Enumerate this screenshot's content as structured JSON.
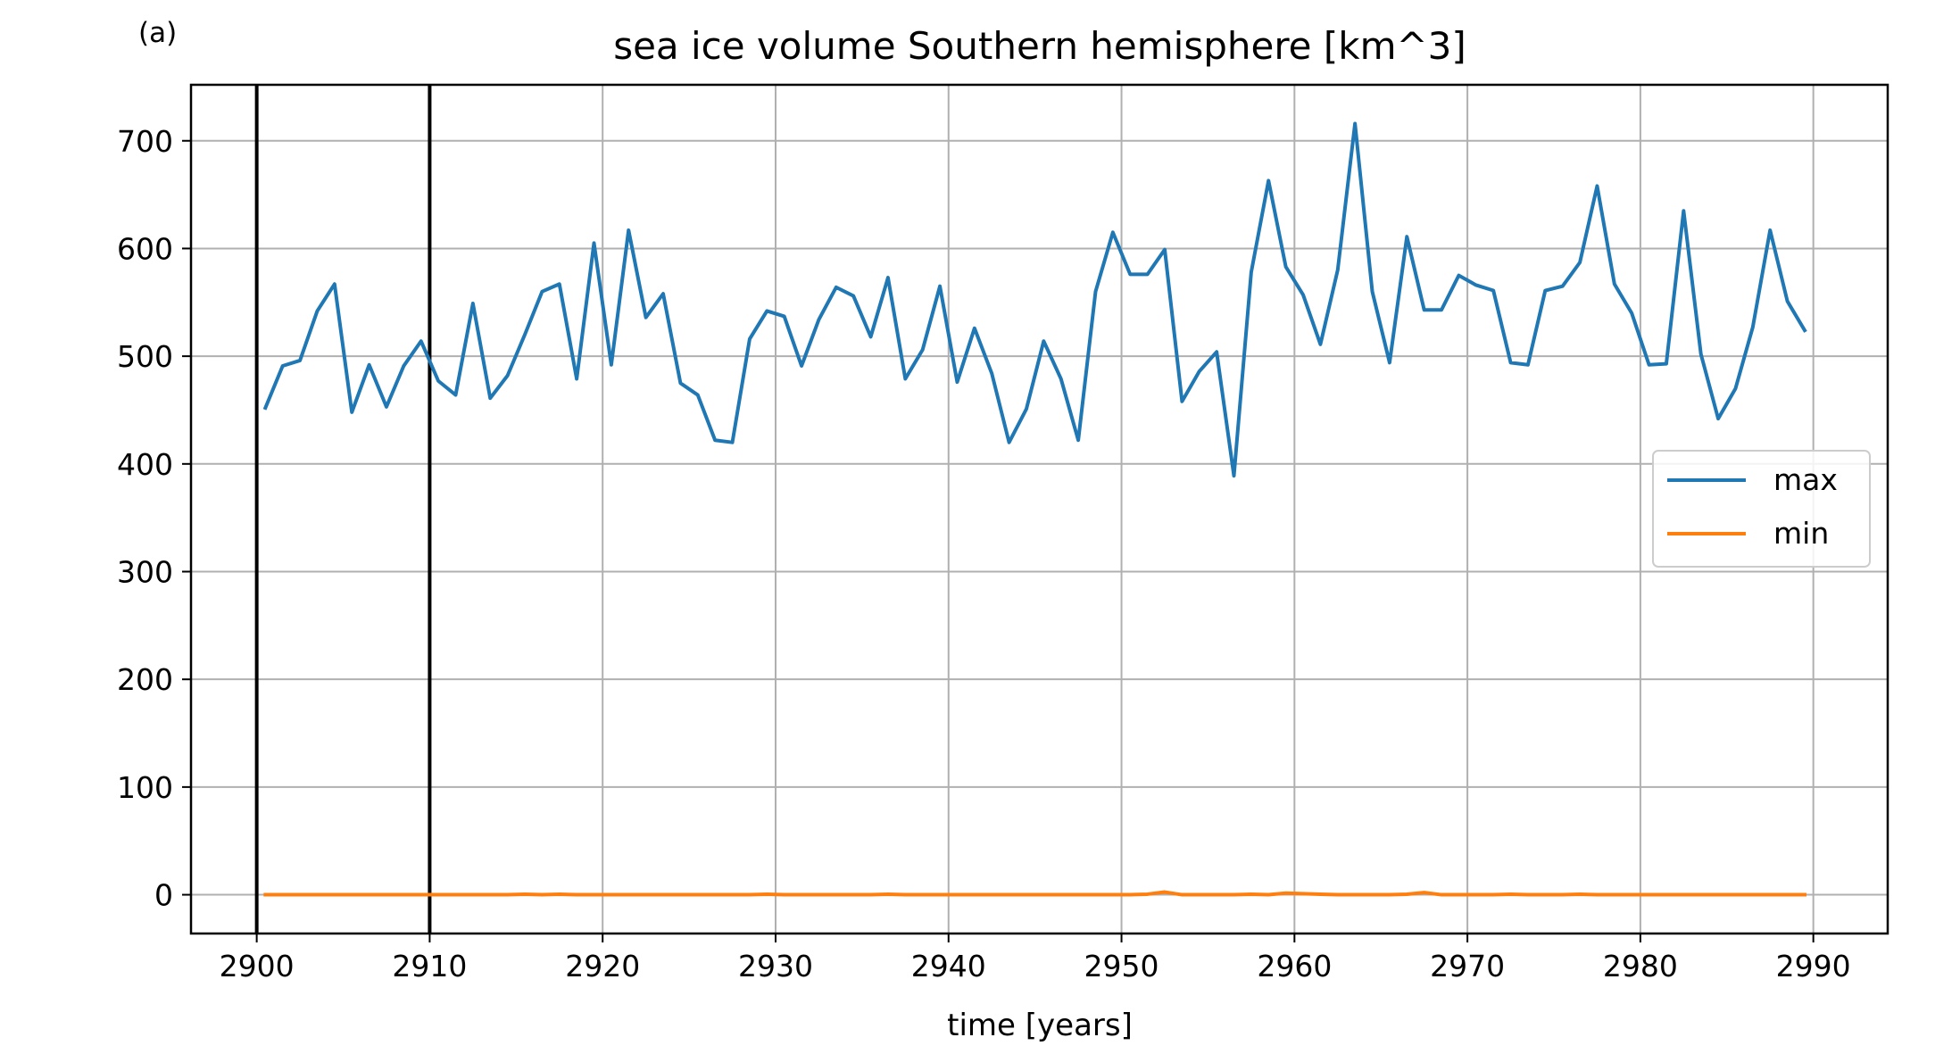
{
  "chart_data": {
    "type": "line",
    "panel_label": "(a)",
    "title": "sea ice volume Southern hemisphere [km^3]",
    "xlabel": "time [years]",
    "ylabel": "",
    "xlim": [
      2896.2,
      2994.3
    ],
    "ylim": [
      -36,
      752
    ],
    "xticks": [
      2900,
      2910,
      2920,
      2930,
      2940,
      2950,
      2960,
      2970,
      2980,
      2990
    ],
    "yticks": [
      0,
      100,
      200,
      300,
      400,
      500,
      600,
      700
    ],
    "grid": true,
    "legend_position": "center-right",
    "vertical_lines": [
      2900,
      2910
    ],
    "colors": {
      "max": "#1f77b4",
      "min": "#ff7f0e",
      "grid": "#b0b0b0",
      "vline": "#000000"
    },
    "x": [
      2900.5,
      2901.5,
      2902.5,
      2903.5,
      2904.5,
      2905.5,
      2906.5,
      2907.5,
      2908.5,
      2909.5,
      2910.5,
      2911.5,
      2912.5,
      2913.5,
      2914.5,
      2915.5,
      2916.5,
      2917.5,
      2918.5,
      2919.5,
      2920.5,
      2921.5,
      2922.5,
      2923.5,
      2924.5,
      2925.5,
      2926.5,
      2927.5,
      2928.5,
      2929.5,
      2930.5,
      2931.5,
      2932.5,
      2933.5,
      2934.5,
      2935.5,
      2936.5,
      2937.5,
      2938.5,
      2939.5,
      2940.5,
      2941.5,
      2942.5,
      2943.5,
      2944.5,
      2945.5,
      2946.5,
      2947.5,
      2948.5,
      2949.5,
      2950.5,
      2951.5,
      2952.5,
      2953.5,
      2954.5,
      2955.5,
      2956.5,
      2957.5,
      2958.5,
      2959.5,
      2960.5,
      2961.5,
      2962.5,
      2963.5,
      2964.5,
      2965.5,
      2966.5,
      2967.5,
      2968.5,
      2969.5,
      2970.5,
      2971.5,
      2972.5,
      2973.5,
      2974.5,
      2975.5,
      2976.5,
      2977.5,
      2978.5,
      2979.5,
      2980.5,
      2981.5,
      2982.5,
      2983.5,
      2984.5,
      2985.5,
      2986.5,
      2987.5,
      2988.5,
      2989.5
    ],
    "series": [
      {
        "name": "max",
        "values": [
          452,
          491,
          496,
          542,
          567,
          448,
          492,
          453,
          491,
          514,
          477,
          464,
          549,
          461,
          482,
          520,
          560,
          567,
          479,
          605,
          492,
          617,
          536,
          558,
          475,
          464,
          422,
          420,
          516,
          542,
          537,
          491,
          534,
          564,
          556,
          518,
          573,
          479,
          506,
          565,
          476,
          526,
          484,
          420,
          451,
          514,
          479,
          422,
          560,
          615,
          576,
          576,
          599,
          458,
          486,
          504,
          389,
          578,
          663,
          583,
          557,
          511,
          580,
          716,
          560,
          494,
          611,
          543,
          543,
          575,
          566,
          561,
          494,
          492,
          561,
          565,
          587,
          658,
          567,
          540,
          492,
          493,
          635,
          502,
          442,
          470,
          527,
          617,
          551,
          524
        ]
      },
      {
        "name": "min",
        "values": [
          0,
          0,
          0,
          0,
          0,
          0,
          0,
          0,
          0,
          0,
          0,
          0,
          0,
          0,
          0,
          0.5,
          0,
          0.5,
          0,
          0,
          0,
          0,
          0,
          0,
          0,
          0,
          0,
          0,
          0,
          0.5,
          0,
          0,
          0,
          0,
          0,
          0,
          0.5,
          0,
          0,
          0,
          0,
          0,
          0,
          0,
          0,
          0,
          0,
          0,
          0,
          0,
          0,
          0.5,
          2.5,
          0,
          0,
          0,
          0,
          0.5,
          0,
          1.5,
          1,
          0.5,
          0,
          0,
          0,
          0,
          0.5,
          2,
          0,
          0,
          0,
          0,
          0.5,
          0,
          0,
          0,
          0.5,
          0,
          0,
          0,
          0,
          0,
          0,
          0,
          0,
          0,
          0,
          0,
          0,
          0
        ]
      }
    ]
  }
}
